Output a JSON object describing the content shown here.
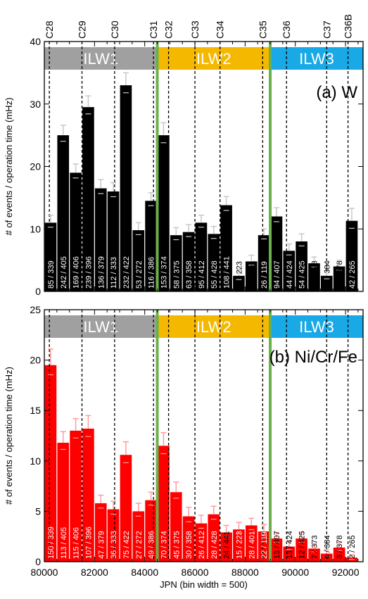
{
  "chart_data": [
    {
      "type": "bar",
      "title": "(a) W",
      "ylabel": "# of events / operation time (mHz)",
      "xlabel": "JPN (bin width = 500)",
      "ylim": [
        0,
        40
      ],
      "yticks": [
        0,
        10,
        20,
        30,
        40
      ],
      "xlim": [
        80000,
        92700
      ],
      "bin_width": 500,
      "bar_color": "#000000",
      "campaigns": [
        {
          "label": "ILW1",
          "x_start": 80000,
          "x_end": 84500,
          "color": "#a0a0a0"
        },
        {
          "label": "ILW2",
          "x_start": 84500,
          "x_end": 89000,
          "color": "#f5b800"
        },
        {
          "label": "ILW3",
          "x_start": 89000,
          "x_end": 92700,
          "color": "#19a9e6"
        }
      ],
      "campaign_boundaries": [
        84500,
        89000
      ],
      "campaign_markers": [
        {
          "label": "C28",
          "x": 80200
        },
        {
          "label": "C29",
          "x": 81500
        },
        {
          "label": "C30",
          "x": 82800
        },
        {
          "label": "C31",
          "x": 84350
        },
        {
          "label": "C32",
          "x": 84950
        },
        {
          "label": "C33",
          "x": 86000
        },
        {
          "label": "C34",
          "x": 87000
        },
        {
          "label": "C35",
          "x": 88700
        },
        {
          "label": "C36",
          "x": 89650
        },
        {
          "label": "C37",
          "x": 91250
        },
        {
          "label": "C36B",
          "x": 92100
        }
      ],
      "bins": [
        {
          "x": 80250,
          "value": 11.0,
          "err": 1.2,
          "label": "85 / 339"
        },
        {
          "x": 80750,
          "value": 25.0,
          "err": 1.6,
          "label": "242 / 405"
        },
        {
          "x": 81250,
          "value": 19.0,
          "err": 1.4,
          "label": "169 / 406"
        },
        {
          "x": 81750,
          "value": 29.5,
          "err": 1.8,
          "label": "239 / 396"
        },
        {
          "x": 82250,
          "value": 16.5,
          "err": 1.4,
          "label": "136 / 379"
        },
        {
          "x": 82750,
          "value": 16.0,
          "err": 1.4,
          "label": "112 / 333"
        },
        {
          "x": 83250,
          "value": 33.0,
          "err": 2.0,
          "label": "232 / 422"
        },
        {
          "x": 83750,
          "value": 9.8,
          "err": 1.2,
          "label": "53 / 272"
        },
        {
          "x": 84250,
          "value": 14.5,
          "err": 1.3,
          "label": "116 / 386"
        },
        {
          "x": 84750,
          "value": 25.0,
          "err": 2.0,
          "label": "153 / 374"
        },
        {
          "x": 85250,
          "value": 9.0,
          "err": 1.2,
          "label": "58 / 375"
        },
        {
          "x": 85750,
          "value": 9.5,
          "err": 1.2,
          "label": "63 / 358"
        },
        {
          "x": 86250,
          "value": 11.0,
          "err": 1.2,
          "label": "95 / 412"
        },
        {
          "x": 86750,
          "value": 9.2,
          "err": 1.2,
          "label": "55 / 428"
        },
        {
          "x": 87250,
          "value": 13.8,
          "err": 1.4,
          "label": "108 / 441"
        },
        {
          "x": 87750,
          "value": 2.5,
          "err": 1.0,
          "label": "11 / 223"
        },
        {
          "x": 88250,
          "value": 4.8,
          "err": 1.0,
          "label": "29 / 401"
        },
        {
          "x": 88750,
          "value": 9.0,
          "err": 1.0,
          "label": "26 / 119"
        },
        {
          "x": 89250,
          "value": 12.0,
          "err": 1.4,
          "label": "94 / 407"
        },
        {
          "x": 89750,
          "value": 6.5,
          "err": 1.1,
          "label": "44 / 424"
        },
        {
          "x": 90250,
          "value": 8.0,
          "err": 1.2,
          "label": "54 / 425"
        },
        {
          "x": 90750,
          "value": 4.5,
          "err": 1.0,
          "label": "23 / 373"
        },
        {
          "x": 91250,
          "value": 2.5,
          "err": 0.8,
          "label": "10 / 384"
        },
        {
          "x": 91750,
          "value": 4.0,
          "err": 1.0,
          "label": "34 / 378"
        },
        {
          "x": 92250,
          "value": 11.3,
          "err": 2.0,
          "label": "42 / 265"
        }
      ]
    },
    {
      "type": "bar",
      "title": "(b) Ni/Cr/Fe",
      "ylabel": "# of events / operation time (mHz)",
      "xlabel": "JPN (bin width = 500)",
      "ylim": [
        0,
        25
      ],
      "yticks": [
        0,
        5,
        10,
        15,
        20,
        25
      ],
      "xlim": [
        80000,
        92700
      ],
      "xticks": [
        80000,
        82000,
        84000,
        86000,
        88000,
        90000,
        92000
      ],
      "bin_width": 500,
      "bar_color": "#ff0000",
      "campaigns": [
        {
          "label": "ILW1",
          "x_start": 80000,
          "x_end": 84500,
          "color": "#a0a0a0"
        },
        {
          "label": "ILW2",
          "x_start": 84500,
          "x_end": 89000,
          "color": "#f5b800"
        },
        {
          "label": "ILW3",
          "x_start": 89000,
          "x_end": 92700,
          "color": "#19a9e6"
        }
      ],
      "campaign_boundaries": [
        84500,
        89000
      ],
      "campaign_marker_x": [
        80200,
        81500,
        82800,
        84350,
        84950,
        86000,
        87000,
        88700,
        89650,
        91250,
        92100
      ],
      "bins": [
        {
          "x": 80250,
          "value": 19.5,
          "err": 1.6,
          "label": "150 / 339"
        },
        {
          "x": 80750,
          "value": 11.8,
          "err": 1.1,
          "label": "113 / 405"
        },
        {
          "x": 81250,
          "value": 13.0,
          "err": 1.2,
          "label": "115 / 406"
        },
        {
          "x": 81750,
          "value": 13.2,
          "err": 1.3,
          "label": "107 / 396"
        },
        {
          "x": 82250,
          "value": 5.8,
          "err": 0.8,
          "label": "47 / 379"
        },
        {
          "x": 82750,
          "value": 5.2,
          "err": 0.8,
          "label": "36 / 333"
        },
        {
          "x": 83250,
          "value": 10.6,
          "err": 1.3,
          "label": "75 / 422"
        },
        {
          "x": 83750,
          "value": 5.0,
          "err": 0.8,
          "label": "27 / 272"
        },
        {
          "x": 84250,
          "value": 6.1,
          "err": 0.8,
          "label": "49 / 386"
        },
        {
          "x": 84750,
          "value": 11.5,
          "err": 1.3,
          "label": "70 / 374"
        },
        {
          "x": 85250,
          "value": 6.9,
          "err": 1.0,
          "label": "45 / 375"
        },
        {
          "x": 85750,
          "value": 4.5,
          "err": 0.9,
          "label": "30 / 358"
        },
        {
          "x": 86250,
          "value": 3.8,
          "err": 0.8,
          "label": "26 / 412"
        },
        {
          "x": 86750,
          "value": 4.7,
          "err": 0.8,
          "label": "28 / 428"
        },
        {
          "x": 87250,
          "value": 2.9,
          "err": 0.7,
          "label": "24 / 441"
        },
        {
          "x": 87750,
          "value": 3.2,
          "err": 0.7,
          "label": "15 / 223"
        },
        {
          "x": 88250,
          "value": 3.6,
          "err": 0.7,
          "label": "28 / 401"
        },
        {
          "x": 88750,
          "value": 3.0,
          "err": 0.7,
          "label": "22 / 119"
        },
        {
          "x": 89250,
          "value": 2.3,
          "err": 0.6,
          "label": "13 / 407"
        },
        {
          "x": 89750,
          "value": 1.5,
          "err": 0.5,
          "label": "13 / 424"
        },
        {
          "x": 90250,
          "value": 2.3,
          "err": 0.6,
          "label": "12 / 425"
        },
        {
          "x": 90750,
          "value": 1.3,
          "err": 0.5,
          "label": "7 / 373"
        },
        {
          "x": 91250,
          "value": 0.8,
          "err": 0.4,
          "label": "4 / 384"
        },
        {
          "x": 91750,
          "value": 1.4,
          "err": 0.5,
          "label": "3 / 378"
        },
        {
          "x": 92250,
          "value": 0.4,
          "err": 0.3,
          "label": "2 / 265"
        }
      ]
    }
  ]
}
